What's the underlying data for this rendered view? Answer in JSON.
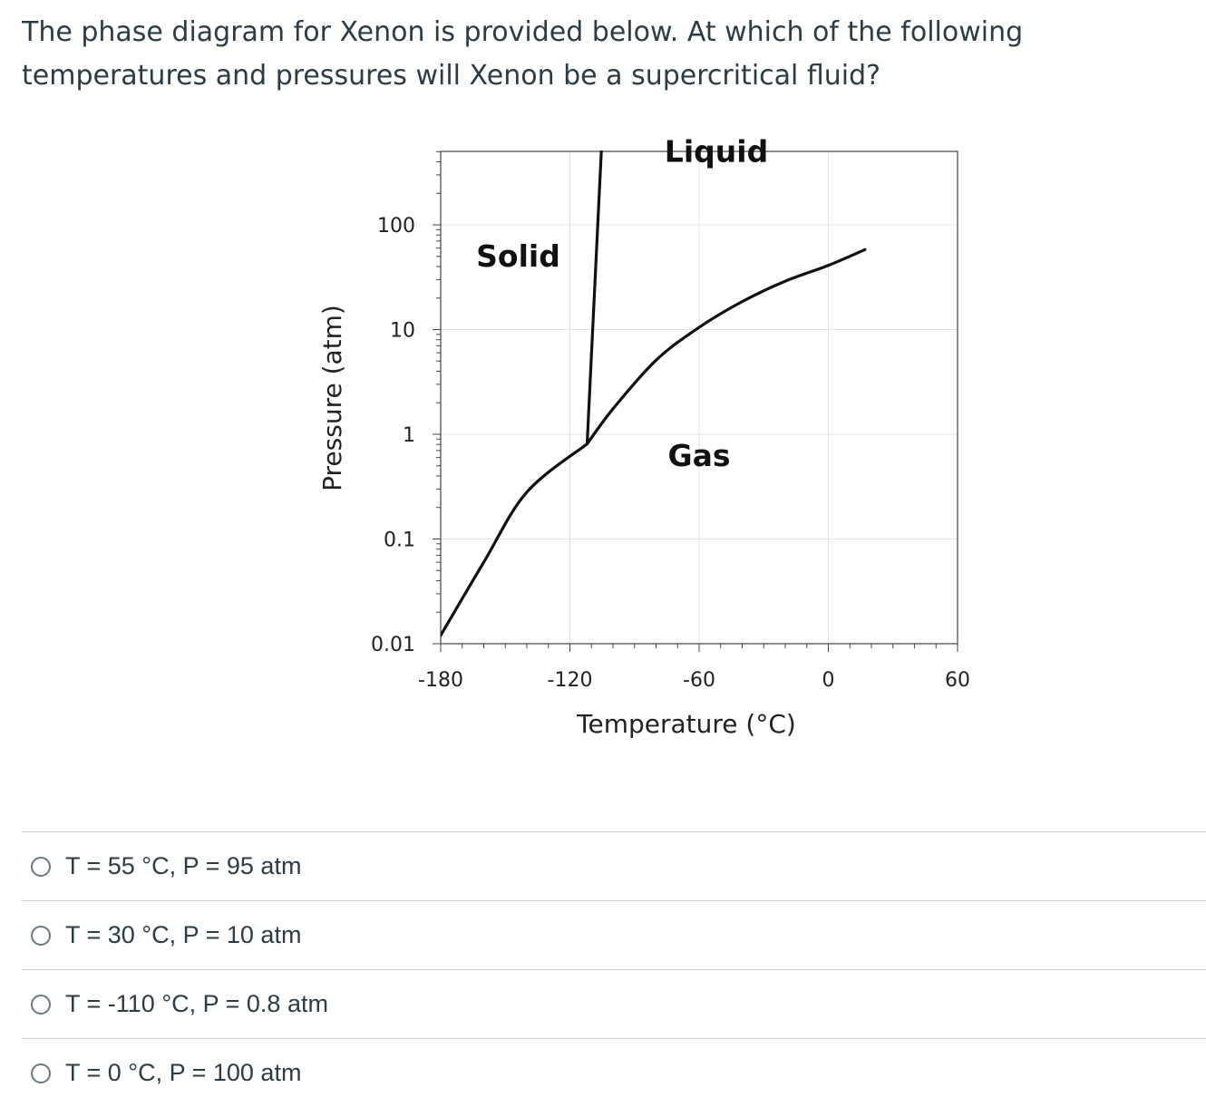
{
  "question": {
    "text": "The phase diagram for Xenon is provided below. At which of the following temperatures and pressures will Xenon be a supercritical fluid?"
  },
  "chart_data": {
    "type": "line",
    "xlabel": "Temperature (°C)",
    "ylabel": "Pressure (atm)",
    "xlim": [
      -180,
      60
    ],
    "ylim": [
      0.01,
      1000
    ],
    "yscale": "log",
    "grid": true,
    "xticks": [
      -180,
      -120,
      -60,
      0,
      60
    ],
    "xtick_labels": [
      "-180",
      "-120",
      "-60",
      "0",
      "60"
    ],
    "yticks": [
      0.01,
      0.1,
      1,
      10,
      100
    ],
    "ytick_labels": [
      "0.01",
      "0.1",
      "1",
      "10",
      "100"
    ],
    "region_labels": [
      {
        "text": "Solid",
        "x": -144,
        "y": 40
      },
      {
        "text": "Liquid",
        "x": -52,
        "y": 400
      },
      {
        "text": "Gas",
        "x": -60,
        "y": 0.5
      }
    ],
    "series": [
      {
        "values": [
          [
            -180,
            0.012
          ],
          [
            -160,
            0.06
          ],
          [
            -140,
            0.28
          ],
          [
            -112,
            0.81
          ]
        ]
      },
      {
        "values": [
          [
            -112,
            0.81
          ],
          [
            -100,
            1.75
          ],
          [
            -80,
            5.1
          ],
          [
            -60,
            10.5
          ],
          [
            -40,
            18.5
          ],
          [
            -20,
            29
          ],
          [
            0,
            41
          ],
          [
            17,
            58
          ]
        ]
      },
      {
        "values": [
          [
            -112,
            0.81
          ],
          [
            -104,
            2000
          ]
        ]
      }
    ]
  },
  "answers": [
    {
      "label": "T = 55 °C, P = 95 atm"
    },
    {
      "label": "T = 30 °C, P = 10 atm"
    },
    {
      "label": "T = -110 °C, P = 0.8 atm"
    },
    {
      "label": "T = 0 °C, P = 100 atm"
    }
  ]
}
